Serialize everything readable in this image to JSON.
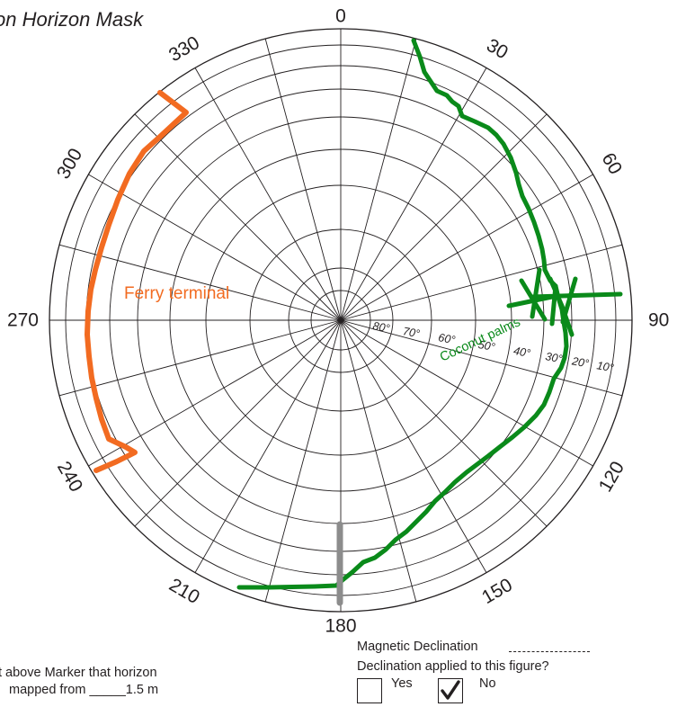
{
  "title": "on Horizon Mask",
  "compass": {
    "azimuth_labels": [
      {
        "az": 0,
        "text": "0"
      },
      {
        "az": 30,
        "text": "30"
      },
      {
        "az": 60,
        "text": "60"
      },
      {
        "az": 90,
        "text": "90"
      },
      {
        "az": 120,
        "text": "120"
      },
      {
        "az": 150,
        "text": "150"
      },
      {
        "az": 180,
        "text": "180"
      },
      {
        "az": 210,
        "text": "210"
      },
      {
        "az": 240,
        "text": "240"
      },
      {
        "az": 270,
        "text": "270"
      },
      {
        "az": 300,
        "text": "300"
      },
      {
        "az": 330,
        "text": "330"
      }
    ],
    "elevation_labels": [
      "80°",
      "70°",
      "60°",
      "50°",
      "40°",
      "30°",
      "20°",
      "10°"
    ]
  },
  "annotations": {
    "ferry_label": "Ferry terminal",
    "palms_label": "Coconut palms"
  },
  "colors": {
    "ferry": "#f26b21",
    "palms": "#0a8a1a",
    "marker": "#8c8c8c",
    "grid": "#231f20"
  },
  "form": {
    "height_line1": "t above Marker that horizon",
    "height_line2_prefix": "mapped from _____",
    "height_value": "1.5 m",
    "magnetic_declination_label": "Magnetic Declination",
    "applied_question": "Declination applied to this figure?",
    "yes_label": "Yes",
    "no_label": "No",
    "yes_checked": false,
    "no_checked": true
  }
}
